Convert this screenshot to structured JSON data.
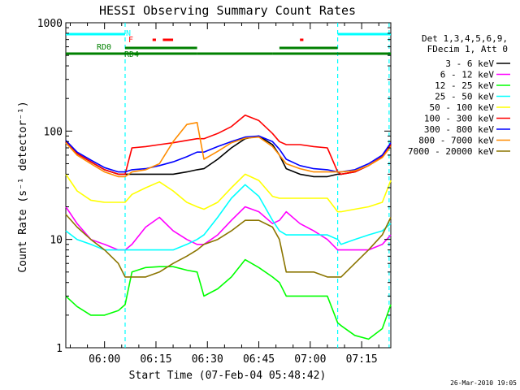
{
  "chart_data": {
    "type": "line",
    "title": "HESSI Observing Summary Count Rates",
    "xlabel": "Start Time (07-Feb-04 05:48:42)",
    "ylabel": "Count Rate (s⁻¹ detector⁻¹)",
    "y_scale": "log",
    "xlim": [
      "05:48:42",
      "07:23:30"
    ],
    "ylim": [
      1,
      1000
    ],
    "x_ticks": [
      "06:00",
      "06:15",
      "06:30",
      "06:45",
      "07:00",
      "07:15"
    ],
    "y_ticks": [
      "1",
      "10",
      "100",
      "1000"
    ],
    "grid": false,
    "legend_position": "right",
    "legend_header": [
      "Det 1,3,4,5,6,9,",
      "FDecim 1, Att 0"
    ],
    "timestamp": "26-Mar-2010 19:05",
    "x_times": [
      "05:48:42",
      "05:52",
      "05:56",
      "06:00",
      "06:04",
      "06:06",
      "06:08",
      "06:12",
      "06:16",
      "06:20",
      "06:24",
      "06:27",
      "06:29",
      "06:33",
      "06:37",
      "06:41",
      "06:45",
      "06:49",
      "06:51",
      "06:53",
      "06:57",
      "07:01",
      "07:05",
      "07:08",
      "07:09",
      "07:13",
      "07:17",
      "07:21",
      "07:23:30"
    ],
    "series": [
      {
        "name": "3 - 6 keV",
        "color": "#000000",
        "values": [
          80,
          62,
          52,
          44,
          40,
          40,
          40,
          40,
          40,
          40,
          42,
          44,
          45,
          55,
          70,
          85,
          90,
          75,
          60,
          45,
          40,
          38,
          38,
          40,
          40,
          42,
          48,
          58,
          75
        ]
      },
      {
        "name": "6 - 12 keV",
        "color": "#ff00ff",
        "values": [
          20,
          14,
          10,
          9,
          8,
          8,
          9,
          13,
          16,
          12,
          10,
          9,
          9,
          11,
          15,
          20,
          18,
          14,
          15,
          18,
          14,
          12,
          10,
          8,
          8,
          8,
          8,
          9,
          11
        ]
      },
      {
        "name": "12 - 25 keV",
        "color": "#00ff00",
        "values": [
          3,
          2.4,
          2,
          2,
          2.2,
          2.5,
          5,
          5.5,
          5.6,
          5.6,
          5.2,
          5,
          3,
          3.5,
          4.5,
          6.5,
          5.5,
          4.5,
          4,
          3,
          3,
          3,
          3,
          1.7,
          1.6,
          1.3,
          1.2,
          1.5,
          2.5
        ]
      },
      {
        "name": "25 - 50 keV",
        "color": "#00ffff",
        "values": [
          12,
          10,
          9,
          8,
          8,
          8,
          8,
          8,
          8,
          8,
          9,
          10,
          11,
          16,
          24,
          32,
          25,
          15,
          12,
          11,
          11,
          11,
          11,
          10,
          9,
          10,
          11,
          12,
          14
        ]
      },
      {
        "name": "50 - 100 keV",
        "color": "#ffff00",
        "values": [
          40,
          28,
          23,
          22,
          22,
          22,
          26,
          30,
          34,
          28,
          22,
          20,
          19,
          22,
          30,
          40,
          35,
          25,
          24,
          24,
          24,
          24,
          24,
          18,
          18,
          19,
          20,
          22,
          35
        ]
      },
      {
        "name": "100 - 300 keV",
        "color": "#ff0000",
        "values": [
          80,
          62,
          52,
          44,
          40,
          40,
          70,
          72,
          75,
          78,
          82,
          85,
          85,
          95,
          110,
          140,
          125,
          95,
          80,
          75,
          75,
          72,
          70,
          42,
          40,
          42,
          48,
          58,
          75
        ]
      },
      {
        "name": "300 - 800 keV",
        "color": "#0000ff",
        "values": [
          82,
          64,
          54,
          46,
          42,
          42,
          44,
          45,
          48,
          52,
          58,
          64,
          64,
          72,
          80,
          88,
          90,
          80,
          68,
          55,
          48,
          45,
          44,
          42,
          42,
          44,
          50,
          60,
          78
        ]
      },
      {
        "name": "800 - 7000 keV",
        "color": "#ff8c00",
        "values": [
          78,
          60,
          50,
          42,
          38,
          38,
          42,
          44,
          50,
          80,
          115,
          120,
          55,
          65,
          78,
          86,
          88,
          72,
          60,
          50,
          45,
          42,
          42,
          42,
          42,
          43,
          48,
          57,
          72
        ]
      },
      {
        "name": "7000 - 20000 keV",
        "color": "#8b7500",
        "values": [
          17,
          13,
          10,
          8,
          6,
          4.5,
          4.5,
          4.5,
          5,
          6,
          7,
          8,
          9,
          10,
          12,
          15,
          15,
          13,
          10,
          5,
          5,
          5,
          4.5,
          4.5,
          4.5,
          6,
          8,
          11,
          16
        ]
      }
    ],
    "flag_bands": [
      {
        "label": "N",
        "color": "#00ffff",
        "segments": [
          [
            "05:48:42",
            "06:06"
          ],
          [
            "07:08",
            "07:23:30"
          ]
        ]
      },
      {
        "label": "F",
        "color": "#ff0000",
        "segments": [
          [
            "06:14",
            "06:15"
          ],
          [
            "06:17",
            "06:20"
          ],
          [
            "06:57",
            "06:58"
          ]
        ]
      },
      {
        "label": "RD0",
        "color": "#008000",
        "segments": [
          [
            "06:06",
            "06:27"
          ],
          [
            "06:51",
            "07:08"
          ]
        ]
      },
      {
        "label": "RD4",
        "color": "#008000",
        "segments": [
          [
            "05:48:42",
            "06:27"
          ],
          [
            "06:27",
            "06:49"
          ],
          [
            "06:49",
            "07:08"
          ],
          [
            "07:08",
            "07:23:30"
          ]
        ]
      }
    ],
    "night_markers": [
      "06:06",
      "07:08",
      "07:23"
    ]
  }
}
